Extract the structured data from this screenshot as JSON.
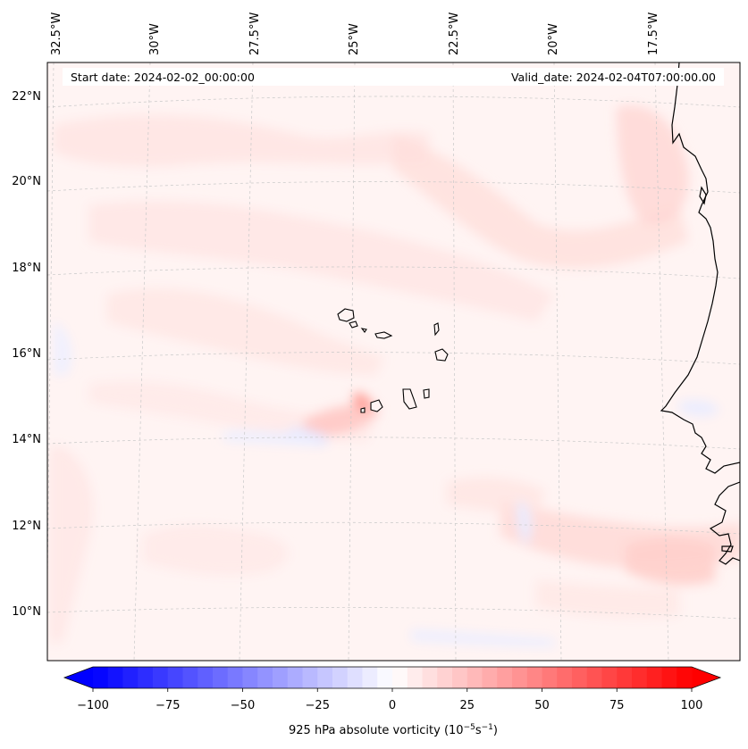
{
  "header": {
    "start_date": "Start date: 2024-02-02_00:00:00",
    "valid_date": "Valid_date: 2024-02-04T07:00:00.00"
  },
  "longitude_labels": [
    "32.5°W",
    "30°W",
    "27.5°W",
    "25°W",
    "22.5°W",
    "20°W",
    "17.5°W"
  ],
  "latitude_labels": [
    "22°N",
    "20°N",
    "18°N",
    "16°N",
    "14°N",
    "12°N",
    "10°N"
  ],
  "colorbar": {
    "ticks": [
      "−100",
      "−75",
      "−50",
      "−25",
      "0",
      "25",
      "50",
      "75",
      "100"
    ],
    "range": [
      -100,
      100
    ],
    "levels": 40,
    "label_main": "925 hPa absolute vorticity (10",
    "label_exp1": "−5",
    "label_mid": "s",
    "label_exp2": "−1",
    "label_end": ")",
    "colormap": "bwr",
    "colors": {
      "negative": "#0000ff",
      "zero": "#ffffff",
      "positive": "#ff0000"
    }
  },
  "map": {
    "field_background": "#fff4f3",
    "coastline_color": "#000000",
    "gridline_color": "#bbbbbb",
    "projection": "lambert-conformal",
    "gridlines": true
  }
}
